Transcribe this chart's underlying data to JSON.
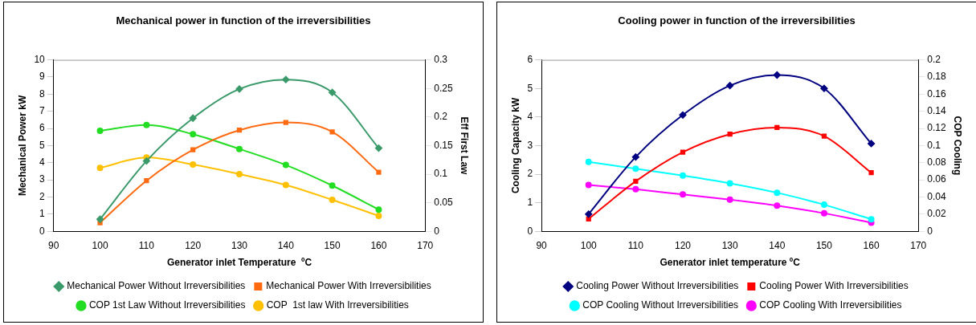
{
  "chart_data": [
    {
      "type": "line",
      "title": "Mechanical power in function of the irreversibilities",
      "xlabel": "Generator inlet Temperature  ºC",
      "ylabel": "Mechanical Power kW",
      "y2label": "Eff First Law",
      "xlim": [
        90,
        170
      ],
      "xticks": [
        90,
        100,
        110,
        120,
        130,
        140,
        150,
        160,
        170
      ],
      "ylim": [
        0,
        10
      ],
      "yticks": [
        0,
        1,
        2,
        3,
        4,
        5,
        6,
        7,
        8,
        9,
        10
      ],
      "y2lim": [
        0,
        0.3
      ],
      "y2ticks": [
        0,
        0.05,
        0.1,
        0.15,
        0.2,
        0.25,
        0.3
      ],
      "grid": false,
      "legend": "bottom",
      "x": [
        100,
        110,
        120,
        130,
        140,
        150,
        160
      ],
      "series": [
        {
          "name": "Mechanical Power Without Irreversibilities",
          "color": "#3a9a6a",
          "marker": "diamond",
          "values": [
            0.7,
            4.1,
            6.6,
            8.3,
            8.85,
            8.1,
            4.85
          ]
        },
        {
          "name": "Mechanical Power With Irreversibilities",
          "color": "#ff6a10",
          "marker": "square",
          "values": [
            0.5,
            2.95,
            4.75,
            5.9,
            6.35,
            5.8,
            3.45
          ]
        },
        {
          "name": "COP 1st Law Without Irreversibilities",
          "color": "#22dd22",
          "marker": "circle",
          "axis": "y2",
          "values": [
            0.176,
            0.186,
            0.17,
            0.144,
            0.116,
            0.08,
            0.038
          ]
        },
        {
          "name": "COP  1st law With Irreversibilities",
          "color": "#ffc000",
          "marker": "circle",
          "axis": "y2",
          "values": [
            0.111,
            0.129,
            0.117,
            0.1,
            0.081,
            0.055,
            0.027
          ]
        }
      ]
    },
    {
      "type": "line",
      "title": "Cooling power in function of the irreversibilities",
      "xlabel": "Generator inlet temperature ºC",
      "ylabel": "Cooling Capacity kW",
      "y2label": "COP Cooling",
      "xlim": [
        90,
        170
      ],
      "xticks": [
        90,
        100,
        110,
        120,
        130,
        140,
        150,
        160,
        170
      ],
      "ylim": [
        0,
        6
      ],
      "yticks": [
        0,
        1,
        2,
        3,
        4,
        5,
        6
      ],
      "y2lim": [
        0,
        0.2
      ],
      "y2ticks": [
        0,
        0.02,
        0.04,
        0.06,
        0.08,
        0.1,
        0.12,
        0.14,
        0.16,
        0.18,
        0.2
      ],
      "grid": false,
      "legend": "bottom",
      "x": [
        100,
        110,
        120,
        130,
        140,
        150,
        160
      ],
      "series": [
        {
          "name": "Cooling Power Without Irreversibilities",
          "color": "#000080",
          "marker": "diamond",
          "values": [
            0.6,
            2.6,
            4.07,
            5.1,
            5.47,
            5.0,
            3.07
          ]
        },
        {
          "name": "Cooling Power With Irreversibilities",
          "color": "#ff0000",
          "marker": "square",
          "values": [
            0.43,
            1.75,
            2.77,
            3.4,
            3.63,
            3.33,
            2.05
          ]
        },
        {
          "name": "COP Cooling Without Irreversibilities",
          "color": "#00ffff",
          "marker": "circle",
          "axis": "y2",
          "values": [
            0.081,
            0.073,
            0.065,
            0.056,
            0.045,
            0.031,
            0.014
          ]
        },
        {
          "name": "COP Cooling With Irreversibilities",
          "color": "#ff00ff",
          "marker": "circle",
          "axis": "y2",
          "values": [
            0.054,
            0.049,
            0.043,
            0.037,
            0.03,
            0.021,
            0.01
          ]
        }
      ]
    }
  ]
}
